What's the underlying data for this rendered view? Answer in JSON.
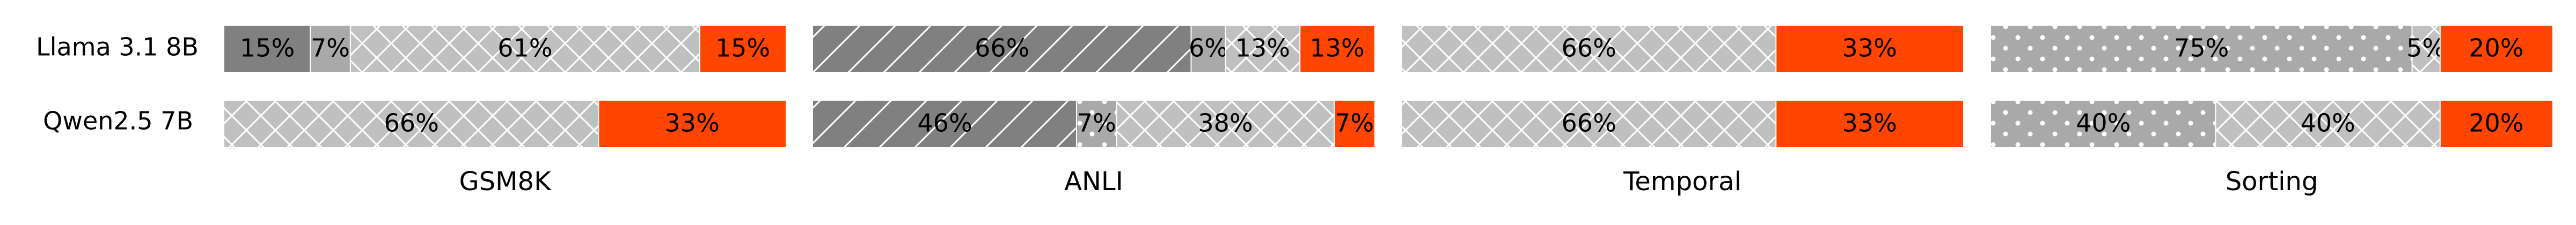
{
  "chart_data": {
    "type": "bar",
    "orientation": "horizontal-stacked",
    "rows": [
      "Llama 3.1 8B",
      "Qwen2.5 7B"
    ],
    "panels": [
      {
        "xlabel": "GSM8K",
        "bars": [
          [
            {
              "value": 15,
              "label": "15%",
              "color": "#808080",
              "pattern": "none"
            },
            {
              "value": 7,
              "label": "7%",
              "color": "#a9a9a9",
              "pattern": "none"
            },
            {
              "value": 61,
              "label": "61%",
              "color": "#c0c0c0",
              "pattern": "crosshatch"
            },
            {
              "value": 15,
              "label": "15%",
              "color": "#ff4500",
              "pattern": "none"
            }
          ],
          [
            {
              "value": 66,
              "label": "66%",
              "color": "#c0c0c0",
              "pattern": "crosshatch"
            },
            {
              "value": 33,
              "label": "33%",
              "color": "#ff4500",
              "pattern": "none"
            }
          ]
        ]
      },
      {
        "xlabel": "ANLI",
        "bars": [
          [
            {
              "value": 66,
              "label": "66%",
              "color": "#808080",
              "pattern": "diagonal"
            },
            {
              "value": 6,
              "label": "6%",
              "color": "#a9a9a9",
              "pattern": "none"
            },
            {
              "value": 13,
              "label": "13%",
              "color": "#c0c0c0",
              "pattern": "crosshatch"
            },
            {
              "value": 13,
              "label": "13%",
              "color": "#ff4500",
              "pattern": "none"
            }
          ],
          [
            {
              "value": 46,
              "label": "46%",
              "color": "#808080",
              "pattern": "diagonal"
            },
            {
              "value": 7,
              "label": "7%",
              "color": "#a9a9a9",
              "pattern": "dots"
            },
            {
              "value": 38,
              "label": "38%",
              "color": "#c0c0c0",
              "pattern": "crosshatch"
            },
            {
              "value": 7,
              "label": "7%",
              "color": "#ff4500",
              "pattern": "none"
            }
          ]
        ]
      },
      {
        "xlabel": "Temporal",
        "bars": [
          [
            {
              "value": 66,
              "label": "66%",
              "color": "#c0c0c0",
              "pattern": "crosshatch"
            },
            {
              "value": 33,
              "label": "33%",
              "color": "#ff4500",
              "pattern": "none"
            }
          ],
          [
            {
              "value": 66,
              "label": "66%",
              "color": "#c0c0c0",
              "pattern": "crosshatch"
            },
            {
              "value": 33,
              "label": "33%",
              "color": "#ff4500",
              "pattern": "none"
            }
          ]
        ]
      },
      {
        "xlabel": "Sorting",
        "bars": [
          [
            {
              "value": 75,
              "label": "75%",
              "color": "#a9a9a9",
              "pattern": "dots"
            },
            {
              "value": 5,
              "label": "5%",
              "color": "#c0c0c0",
              "pattern": "crosshatch"
            },
            {
              "value": 20,
              "label": "20%",
              "color": "#ff4500",
              "pattern": "none"
            }
          ],
          [
            {
              "value": 40,
              "label": "40%",
              "color": "#a9a9a9",
              "pattern": "dots"
            },
            {
              "value": 40,
              "label": "40%",
              "color": "#c0c0c0",
              "pattern": "crosshatch"
            },
            {
              "value": 20,
              "label": "20%",
              "color": "#ff4500",
              "pattern": "none"
            }
          ]
        ]
      }
    ],
    "xlim": [
      0,
      100
    ],
    "grid": false,
    "legend": "none"
  }
}
